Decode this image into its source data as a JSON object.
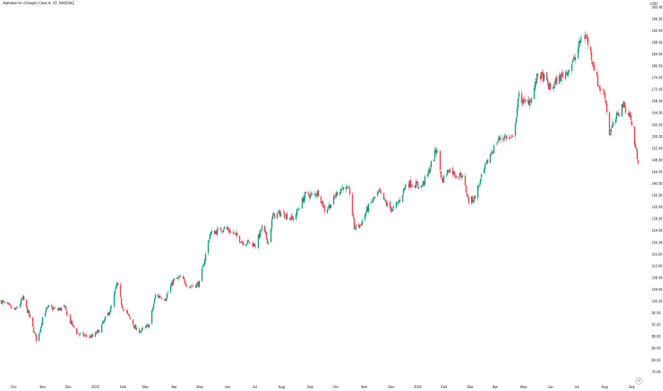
{
  "header": {
    "title": "Alphabet Inc (Google) Class A, 1D, NASDAQ",
    "currency": "USD"
  },
  "icons": {
    "settings": "gear-icon"
  },
  "colors": {
    "up": "#089981",
    "down": "#f23645",
    "grid": "#f0f3fa",
    "text": "#131722"
  },
  "chart_data": {
    "type": "candlestick",
    "title": "Alphabet Inc (Google) Class A, 1D, NASDAQ",
    "ylabel": "USD",
    "ylim": [
      76,
      200
    ],
    "y_ticks": [
      "76.00",
      "80.00",
      "84.00",
      "88.00",
      "92.00",
      "96.00",
      "100.00",
      "104.00",
      "108.00",
      "112.00",
      "116.00",
      "120.00",
      "124.00",
      "128.00",
      "132.00",
      "136.00",
      "140.00",
      "144.00",
      "148.00",
      "152.00",
      "156.00",
      "160.00",
      "164.00",
      "168.00",
      "172.00",
      "176.00",
      "180.00",
      "184.00",
      "188.00",
      "192.00",
      "196.00",
      "200.00"
    ],
    "x_ticks": [
      "Oct",
      "Nov",
      "Dec",
      "2023",
      "Feb",
      "Mar",
      "Apr",
      "May",
      "Jun",
      "Jul",
      "Aug",
      "Sep",
      "Oct",
      "Nov",
      "Dec",
      "2024",
      "Feb",
      "Mar",
      "Apr",
      "May",
      "Jun",
      "Jul",
      "Aug",
      "Sep"
    ],
    "grid": false,
    "legend": "none",
    "close_path": [
      [
        "2022-09-26",
        100
      ],
      [
        "2022-10-05",
        98
      ],
      [
        "2022-10-12",
        97
      ],
      [
        "2022-10-20",
        101
      ],
      [
        "2022-10-26",
        96
      ],
      [
        "2022-11-01",
        90
      ],
      [
        "2022-11-05",
        86
      ],
      [
        "2022-11-12",
        96
      ],
      [
        "2022-11-18",
        98
      ],
      [
        "2022-11-28",
        97
      ],
      [
        "2022-12-05",
        98
      ],
      [
        "2022-12-12",
        93
      ],
      [
        "2022-12-20",
        89
      ],
      [
        "2022-12-30",
        88
      ],
      [
        "2023-01-06",
        88
      ],
      [
        "2023-01-13",
        90
      ],
      [
        "2023-01-20",
        94
      ],
      [
        "2023-01-27",
        98
      ],
      [
        "2023-02-02",
        106
      ],
      [
        "2023-02-08",
        98
      ],
      [
        "2023-02-15",
        95
      ],
      [
        "2023-02-24",
        90
      ],
      [
        "2023-03-01",
        90
      ],
      [
        "2023-03-10",
        92
      ],
      [
        "2023-03-17",
        102
      ],
      [
        "2023-03-28",
        101
      ],
      [
        "2023-04-06",
        107
      ],
      [
        "2023-04-14",
        108
      ],
      [
        "2023-04-24",
        105
      ],
      [
        "2023-05-05",
        106
      ],
      [
        "2023-05-10",
        113
      ],
      [
        "2023-05-17",
        123
      ],
      [
        "2023-05-26",
        124
      ],
      [
        "2023-06-02",
        125
      ],
      [
        "2023-06-12",
        123
      ],
      [
        "2023-06-23",
        120
      ],
      [
        "2023-06-30",
        120
      ],
      [
        "2023-07-07",
        119
      ],
      [
        "2023-07-14",
        125
      ],
      [
        "2023-07-21",
        120
      ],
      [
        "2023-07-26",
        129
      ],
      [
        "2023-08-04",
        130
      ],
      [
        "2023-08-11",
        129
      ],
      [
        "2023-08-18",
        128
      ],
      [
        "2023-08-31",
        136
      ],
      [
        "2023-09-08",
        136
      ],
      [
        "2023-09-15",
        137
      ],
      [
        "2023-09-22",
        131
      ],
      [
        "2023-09-29",
        133
      ],
      [
        "2023-10-06",
        137
      ],
      [
        "2023-10-13",
        139
      ],
      [
        "2023-10-20",
        137
      ],
      [
        "2023-10-25",
        125
      ],
      [
        "2023-11-01",
        126
      ],
      [
        "2023-11-08",
        131
      ],
      [
        "2023-11-14",
        134
      ],
      [
        "2023-11-22",
        137
      ],
      [
        "2023-11-30",
        133
      ],
      [
        "2023-12-07",
        131
      ],
      [
        "2023-12-14",
        134
      ],
      [
        "2023-12-22",
        140
      ],
      [
        "2023-12-29",
        140
      ],
      [
        "2024-01-08",
        139
      ],
      [
        "2024-01-15",
        143
      ],
      [
        "2024-01-25",
        152
      ],
      [
        "2024-01-31",
        141
      ],
      [
        "2024-02-08",
        145
      ],
      [
        "2024-02-15",
        143
      ],
      [
        "2024-02-22",
        143
      ],
      [
        "2024-03-01",
        134
      ],
      [
        "2024-03-07",
        135
      ],
      [
        "2024-03-15",
        142
      ],
      [
        "2024-03-25",
        150
      ],
      [
        "2024-04-03",
        155
      ],
      [
        "2024-04-10",
        156
      ],
      [
        "2024-04-19",
        155
      ],
      [
        "2024-04-26",
        170
      ],
      [
        "2024-05-03",
        167
      ],
      [
        "2024-05-10",
        169
      ],
      [
        "2024-05-17",
        177
      ],
      [
        "2024-05-24",
        176
      ],
      [
        "2024-05-31",
        172
      ],
      [
        "2024-06-07",
        175
      ],
      [
        "2024-06-14",
        177
      ],
      [
        "2024-06-21",
        179
      ],
      [
        "2024-06-28",
        183
      ],
      [
        "2024-07-05",
        190
      ],
      [
        "2024-07-10",
        190
      ],
      [
        "2024-07-17",
        182
      ],
      [
        "2024-07-24",
        173
      ],
      [
        "2024-07-31",
        170
      ],
      [
        "2024-08-05",
        157
      ],
      [
        "2024-08-12",
        162
      ],
      [
        "2024-08-20",
        167
      ],
      [
        "2024-08-28",
        163
      ],
      [
        "2024-09-03",
        152
      ],
      [
        "2024-09-06",
        148
      ]
    ]
  }
}
